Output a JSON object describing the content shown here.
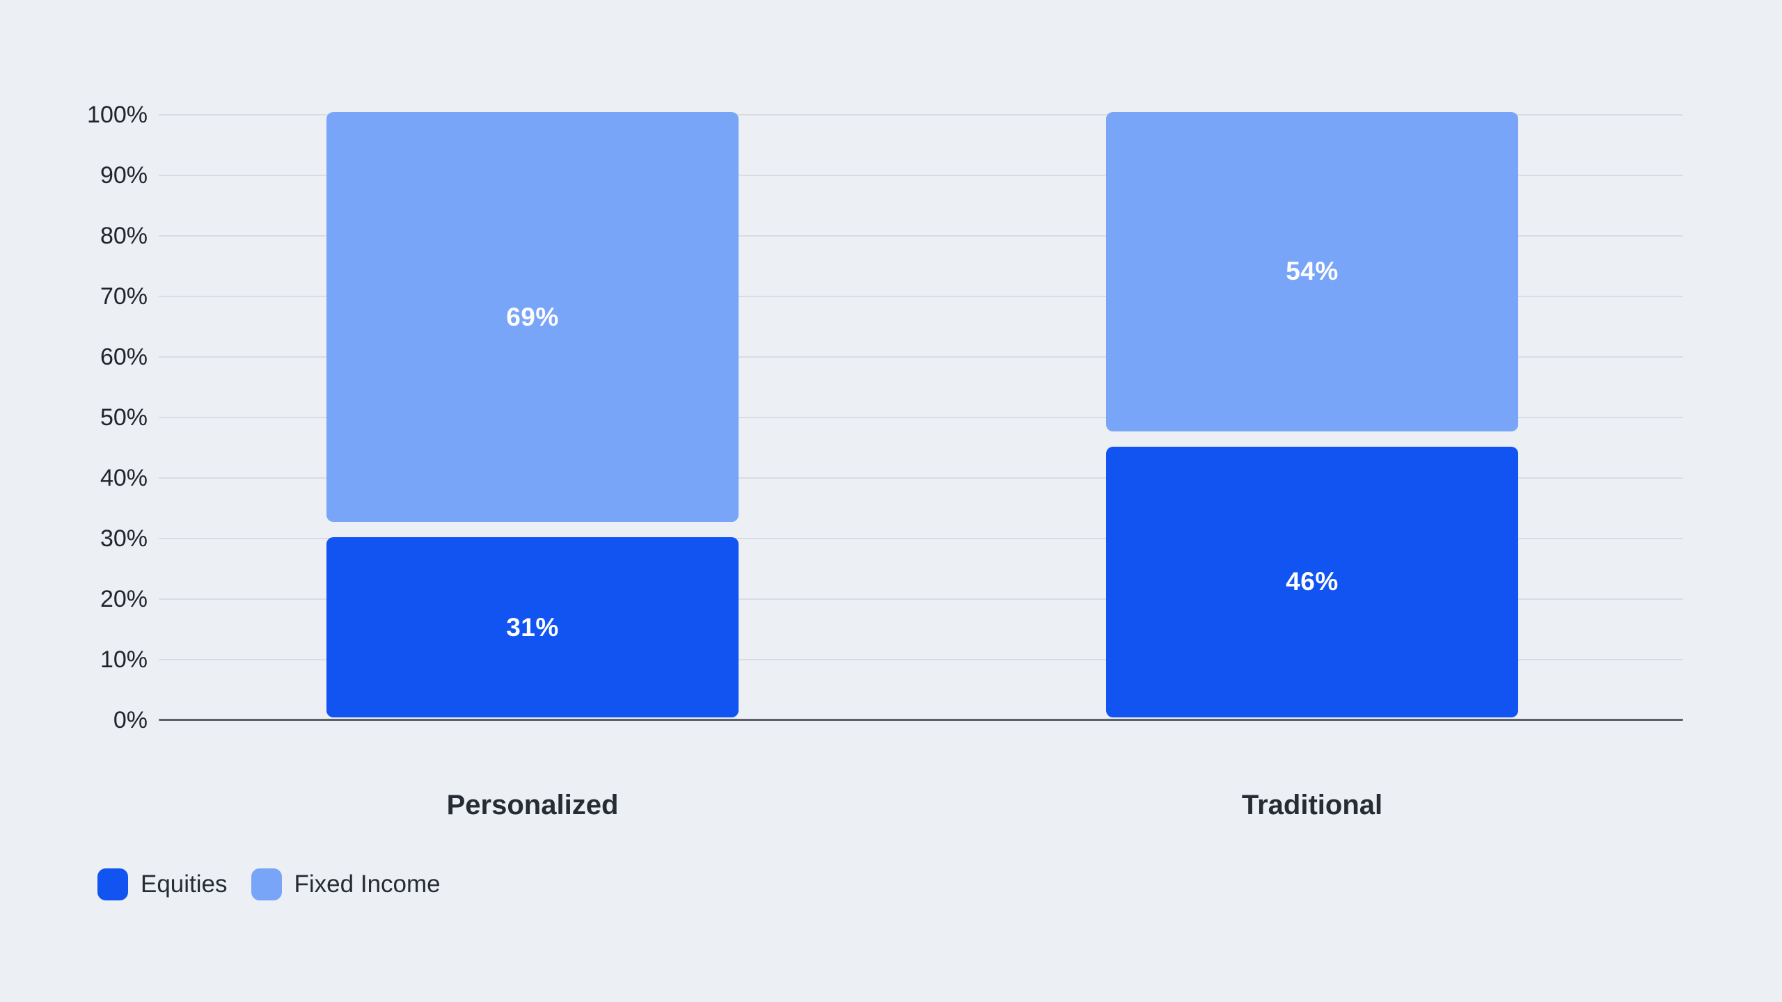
{
  "page": {
    "background_color": "#ECEFF3",
    "text_color": "#272B33",
    "tick_text_color": "#21252B",
    "gridline_color": "#D9DDE3",
    "axis_line_color": "#5C6168",
    "value_label_color": "#FFFFFF"
  },
  "chart_data": {
    "type": "bar",
    "stacked": true,
    "orientation": "vertical",
    "title": "",
    "xlabel": "",
    "ylabel": "",
    "categories": [
      "Personalized",
      "Traditional"
    ],
    "series": [
      {
        "name": "Equities",
        "color": "#1154F1",
        "values": [
          31,
          46
        ],
        "value_labels": [
          "31%",
          "46%"
        ]
      },
      {
        "name": "Fixed Income",
        "color": "#78A5F8",
        "values": [
          69,
          54
        ],
        "value_labels": [
          "69%",
          "54%"
        ]
      }
    ],
    "ylim": [
      0,
      100
    ],
    "y_ticks": [
      "0%",
      "10%",
      "20%",
      "30%",
      "40%",
      "50%",
      "60%",
      "70%",
      "80%",
      "90%",
      "100%"
    ],
    "y_tick_values": [
      0,
      10,
      20,
      30,
      40,
      50,
      60,
      70,
      80,
      90,
      100
    ],
    "grid": true,
    "legend_position": "bottom-left"
  }
}
